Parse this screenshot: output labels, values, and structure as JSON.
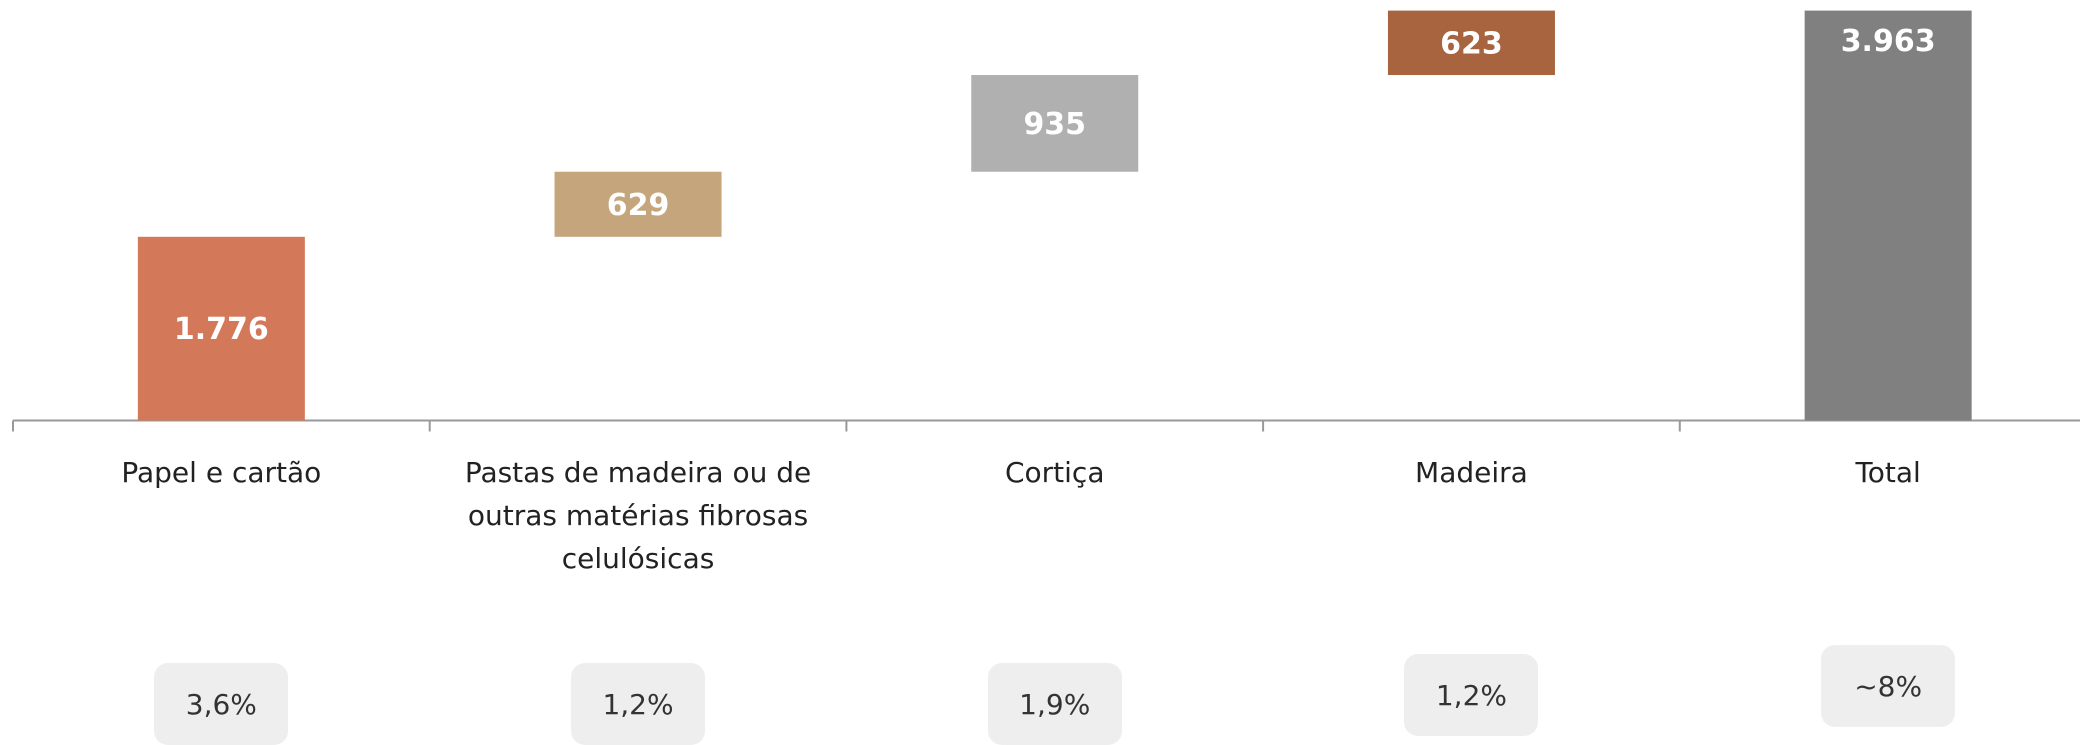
{
  "chart_data": {
    "type": "waterfall",
    "categories": [
      "Papel e cartão",
      "Pastas de madeira ou de outras matérias fibrosas celulósicas",
      "Cortiça",
      "Madeira",
      "Total"
    ],
    "values": [
      1776,
      629,
      935,
      623,
      3963
    ],
    "value_labels": [
      "1.776",
      "629",
      "935",
      "623",
      "3.963"
    ],
    "is_total": [
      false,
      false,
      false,
      false,
      true
    ],
    "colors": [
      "#d4785a",
      "#c4a57c",
      "#b0b0b0",
      "#a8643f",
      "#808080"
    ],
    "shares": [
      "3,6%",
      "1,2%",
      "1,9%",
      "1,2%",
      "~8%"
    ]
  }
}
